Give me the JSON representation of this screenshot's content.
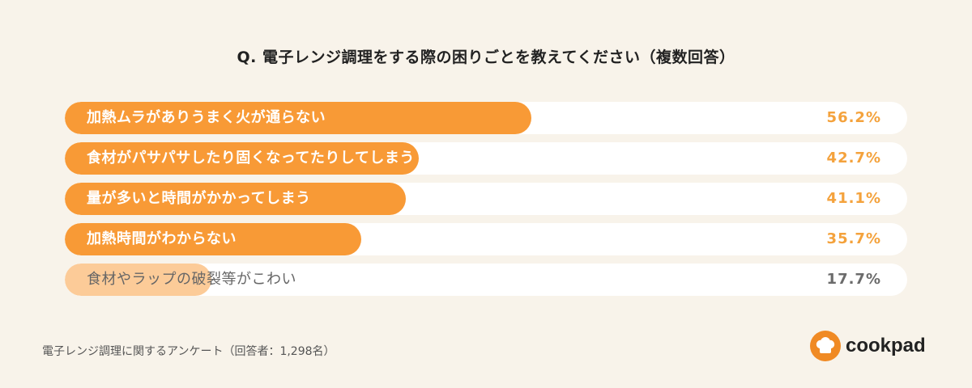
{
  "chart_data": {
    "type": "bar",
    "orientation": "horizontal",
    "title": "Q. 電子レンジ調理をする際の困りごとを教えてください（複数回答）",
    "unit": "%",
    "categories": [
      "加熱ムラがありうまく火が通らない",
      "食材がパサパサしたり固くなってたりしてしまう",
      "量が多いと時間がかかってしまう",
      "加熱時間がわからない",
      "食材やラップの破裂等がこわい"
    ],
    "values": [
      56.2,
      42.7,
      41.1,
      35.7,
      17.7
    ],
    "value_labels": [
      "56.2%",
      "42.7%",
      "41.1%",
      "35.7%",
      "17.7%"
    ],
    "xlim": [
      0,
      100
    ],
    "grid": false,
    "legend": "none"
  },
  "colors": {
    "background": "#f8f3ea",
    "track": "#ffffff",
    "bar_strong": "#f89a36",
    "bar_light": "#fccb98",
    "value_strong": "#f4a23c",
    "value_muted": "#6b6b6b"
  },
  "footnote": "電子レンジ調理に関するアンケート（回答者：1,298名）",
  "brand": {
    "icon": "chef-hat-icon",
    "name": "cookpad"
  }
}
